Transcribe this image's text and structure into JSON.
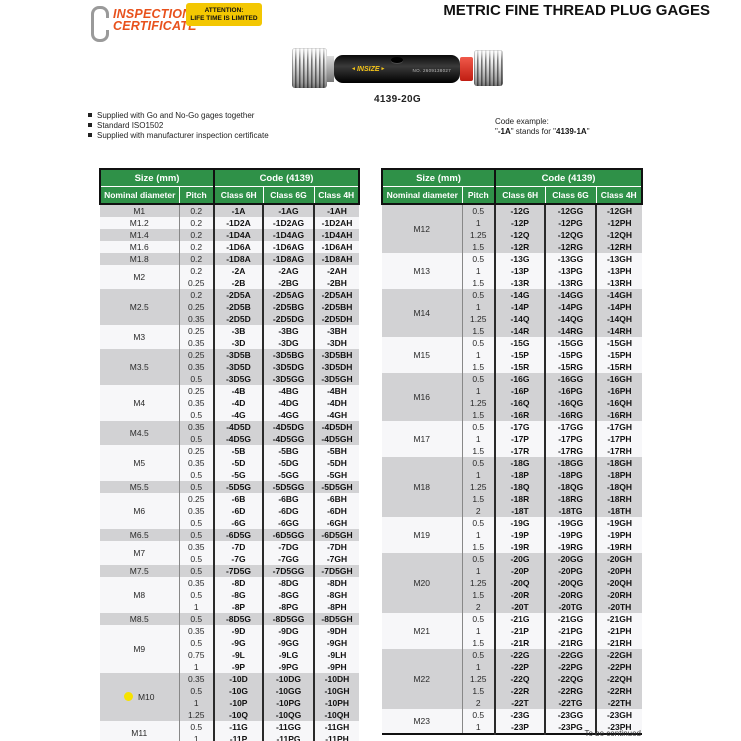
{
  "header": {
    "logo_line1": "INSPECTION",
    "logo_line2": "CERTIFICATE",
    "attention_line1": "ATTENTION:",
    "attention_line2": "LIFE TIME IS LIMITED",
    "title": "METRIC FINE THREAD PLUG GAGES"
  },
  "product": {
    "brand": "INSIZE",
    "serial": "NO. 2609138027",
    "model": "4139-20G"
  },
  "features": [
    "Supplied with Go and No-Go gages together",
    "Standard ISO1502",
    "Supplied with manufacturer inspection certificate"
  ],
  "code_example": {
    "label": "Code example:",
    "q1": "\"",
    "code": "-1A",
    "mid": "\" stands for \"",
    "full": "4139-1A",
    "q2": "\""
  },
  "colors": {
    "header_green": "#2f9148",
    "stripe_gray": "#d2d2d4",
    "stripe_white": "#f7f7f9",
    "accent_orange": "#e8511c",
    "attention_yellow": "#f3c702",
    "dot_yellow": "#f6e200",
    "nogo_red": "#c01d12"
  },
  "tables": [
    {
      "header": {
        "size_group": "Size (mm)",
        "code_group": "Code (4139)",
        "columns": [
          "Nominal diameter",
          "Pitch",
          "Class 6H",
          "Class 6G",
          "Class 4H"
        ]
      },
      "groups": [
        {
          "diameter": "M1",
          "rows": [
            [
              "0.2",
              "-1A",
              "-1AG",
              "-1AH"
            ]
          ]
        },
        {
          "diameter": "M1.2",
          "rows": [
            [
              "0.2",
              "-1D2A",
              "-1D2AG",
              "-1D2AH"
            ]
          ]
        },
        {
          "diameter": "M1.4",
          "rows": [
            [
              "0.2",
              "-1D4A",
              "-1D4AG",
              "-1D4AH"
            ]
          ]
        },
        {
          "diameter": "M1.6",
          "rows": [
            [
              "0.2",
              "-1D6A",
              "-1D6AG",
              "-1D6AH"
            ]
          ]
        },
        {
          "diameter": "M1.8",
          "rows": [
            [
              "0.2",
              "-1D8A",
              "-1D8AG",
              "-1D8AH"
            ]
          ]
        },
        {
          "diameter": "M2",
          "rows": [
            [
              "0.2",
              "-2A",
              "-2AG",
              "-2AH"
            ],
            [
              "0.25",
              "-2B",
              "-2BG",
              "-2BH"
            ]
          ]
        },
        {
          "diameter": "M2.5",
          "rows": [
            [
              "0.2",
              "-2D5A",
              "-2D5AG",
              "-2D5AH"
            ],
            [
              "0.25",
              "-2D5B",
              "-2D5BG",
              "-2D5BH"
            ],
            [
              "0.35",
              "-2D5D",
              "-2D5DG",
              "-2D5DH"
            ]
          ]
        },
        {
          "diameter": "M3",
          "rows": [
            [
              "0.25",
              "-3B",
              "-3BG",
              "-3BH"
            ],
            [
              "0.35",
              "-3D",
              "-3DG",
              "-3DH"
            ]
          ]
        },
        {
          "diameter": "M3.5",
          "rows": [
            [
              "0.25",
              "-3D5B",
              "-3D5BG",
              "-3D5BH"
            ],
            [
              "0.35",
              "-3D5D",
              "-3D5DG",
              "-3D5DH"
            ],
            [
              "0.5",
              "-3D5G",
              "-3D5GG",
              "-3D5GH"
            ]
          ]
        },
        {
          "diameter": "M4",
          "rows": [
            [
              "0.25",
              "-4B",
              "-4BG",
              "-4BH"
            ],
            [
              "0.35",
              "-4D",
              "-4DG",
              "-4DH"
            ],
            [
              "0.5",
              "-4G",
              "-4GG",
              "-4GH"
            ]
          ]
        },
        {
          "diameter": "M4.5",
          "rows": [
            [
              "0.35",
              "-4D5D",
              "-4D5DG",
              "-4D5DH"
            ],
            [
              "0.5",
              "-4D5G",
              "-4D5GG",
              "-4D5GH"
            ]
          ]
        },
        {
          "diameter": "M5",
          "rows": [
            [
              "0.25",
              "-5B",
              "-5BG",
              "-5BH"
            ],
            [
              "0.35",
              "-5D",
              "-5DG",
              "-5DH"
            ],
            [
              "0.5",
              "-5G",
              "-5GG",
              "-5GH"
            ]
          ]
        },
        {
          "diameter": "M5.5",
          "rows": [
            [
              "0.5",
              "-5D5G",
              "-5D5GG",
              "-5D5GH"
            ]
          ]
        },
        {
          "diameter": "M6",
          "rows": [
            [
              "0.25",
              "-6B",
              "-6BG",
              "-6BH"
            ],
            [
              "0.35",
              "-6D",
              "-6DG",
              "-6DH"
            ],
            [
              "0.5",
              "-6G",
              "-6GG",
              "-6GH"
            ]
          ]
        },
        {
          "diameter": "M6.5",
          "rows": [
            [
              "0.5",
              "-6D5G",
              "-6D5GG",
              "-6D5GH"
            ]
          ]
        },
        {
          "diameter": "M7",
          "rows": [
            [
              "0.35",
              "-7D",
              "-7DG",
              "-7DH"
            ],
            [
              "0.5",
              "-7G",
              "-7GG",
              "-7GH"
            ]
          ]
        },
        {
          "diameter": "M7.5",
          "rows": [
            [
              "0.5",
              "-7D5G",
              "-7D5GG",
              "-7D5GH"
            ]
          ]
        },
        {
          "diameter": "M8",
          "rows": [
            [
              "0.35",
              "-8D",
              "-8DG",
              "-8DH"
            ],
            [
              "0.5",
              "-8G",
              "-8GG",
              "-8GH"
            ],
            [
              "1",
              "-8P",
              "-8PG",
              "-8PH"
            ]
          ]
        },
        {
          "diameter": "M8.5",
          "rows": [
            [
              "0.5",
              "-8D5G",
              "-8D5GG",
              "-8D5GH"
            ]
          ]
        },
        {
          "diameter": "M9",
          "rows": [
            [
              "0.35",
              "-9D",
              "-9DG",
              "-9DH"
            ],
            [
              "0.5",
              "-9G",
              "-9GG",
              "-9GH"
            ],
            [
              "0.75",
              "-9L",
              "-9LG",
              "-9LH"
            ],
            [
              "1",
              "-9P",
              "-9PG",
              "-9PH"
            ]
          ]
        },
        {
          "diameter": "M10",
          "marked": true,
          "rows": [
            [
              "0.35",
              "-10D",
              "-10DG",
              "-10DH"
            ],
            [
              "0.5",
              "-10G",
              "-10GG",
              "-10GH"
            ],
            [
              "1",
              "-10P",
              "-10PG",
              "-10PH"
            ],
            [
              "1.25",
              "-10Q",
              "-10QG",
              "-10QH"
            ]
          ]
        },
        {
          "diameter": "M11",
          "rows": [
            [
              "0.5",
              "-11G",
              "-11GG",
              "-11GH"
            ],
            [
              "1",
              "-11P",
              "-11PG",
              "-11PH"
            ]
          ]
        }
      ]
    },
    {
      "header": {
        "size_group": "Size (mm)",
        "code_group": "Code (4139)",
        "columns": [
          "Nominal diameter",
          "Pitch",
          "Class 6H",
          "Class 6G",
          "Class 4H"
        ]
      },
      "footer": "To be continued",
      "groups": [
        {
          "diameter": "M12",
          "rows": [
            [
              "0.5",
              "-12G",
              "-12GG",
              "-12GH"
            ],
            [
              "1",
              "-12P",
              "-12PG",
              "-12PH"
            ],
            [
              "1.25",
              "-12Q",
              "-12QG",
              "-12QH"
            ],
            [
              "1.5",
              "-12R",
              "-12RG",
              "-12RH"
            ]
          ]
        },
        {
          "diameter": "M13",
          "rows": [
            [
              "0.5",
              "-13G",
              "-13GG",
              "-13GH"
            ],
            [
              "1",
              "-13P",
              "-13PG",
              "-13PH"
            ],
            [
              "1.5",
              "-13R",
              "-13RG",
              "-13RH"
            ]
          ]
        },
        {
          "diameter": "M14",
          "rows": [
            [
              "0.5",
              "-14G",
              "-14GG",
              "-14GH"
            ],
            [
              "1",
              "-14P",
              "-14PG",
              "-14PH"
            ],
            [
              "1.25",
              "-14Q",
              "-14QG",
              "-14QH"
            ],
            [
              "1.5",
              "-14R",
              "-14RG",
              "-14RH"
            ]
          ]
        },
        {
          "diameter": "M15",
          "rows": [
            [
              "0.5",
              "-15G",
              "-15GG",
              "-15GH"
            ],
            [
              "1",
              "-15P",
              "-15PG",
              "-15PH"
            ],
            [
              "1.5",
              "-15R",
              "-15RG",
              "-15RH"
            ]
          ]
        },
        {
          "diameter": "M16",
          "rows": [
            [
              "0.5",
              "-16G",
              "-16GG",
              "-16GH"
            ],
            [
              "1",
              "-16P",
              "-16PG",
              "-16PH"
            ],
            [
              "1.25",
              "-16Q",
              "-16QG",
              "-16QH"
            ],
            [
              "1.5",
              "-16R",
              "-16RG",
              "-16RH"
            ]
          ]
        },
        {
          "diameter": "M17",
          "rows": [
            [
              "0.5",
              "-17G",
              "-17GG",
              "-17GH"
            ],
            [
              "1",
              "-17P",
              "-17PG",
              "-17PH"
            ],
            [
              "1.5",
              "-17R",
              "-17RG",
              "-17RH"
            ]
          ]
        },
        {
          "diameter": "M18",
          "rows": [
            [
              "0.5",
              "-18G",
              "-18GG",
              "-18GH"
            ],
            [
              "1",
              "-18P",
              "-18PG",
              "-18PH"
            ],
            [
              "1.25",
              "-18Q",
              "-18QG",
              "-18QH"
            ],
            [
              "1.5",
              "-18R",
              "-18RG",
              "-18RH"
            ],
            [
              "2",
              "-18T",
              "-18TG",
              "-18TH"
            ]
          ]
        },
        {
          "diameter": "M19",
          "rows": [
            [
              "0.5",
              "-19G",
              "-19GG",
              "-19GH"
            ],
            [
              "1",
              "-19P",
              "-19PG",
              "-19PH"
            ],
            [
              "1.5",
              "-19R",
              "-19RG",
              "-19RH"
            ]
          ]
        },
        {
          "diameter": "M20",
          "rows": [
            [
              "0.5",
              "-20G",
              "-20GG",
              "-20GH"
            ],
            [
              "1",
              "-20P",
              "-20PG",
              "-20PH"
            ],
            [
              "1.25",
              "-20Q",
              "-20QG",
              "-20QH"
            ],
            [
              "1.5",
              "-20R",
              "-20RG",
              "-20RH"
            ],
            [
              "2",
              "-20T",
              "-20TG",
              "-20TH"
            ]
          ]
        },
        {
          "diameter": "M21",
          "rows": [
            [
              "0.5",
              "-21G",
              "-21GG",
              "-21GH"
            ],
            [
              "1",
              "-21P",
              "-21PG",
              "-21PH"
            ],
            [
              "1.5",
              "-21R",
              "-21RG",
              "-21RH"
            ]
          ]
        },
        {
          "diameter": "M22",
          "rows": [
            [
              "0.5",
              "-22G",
              "-22GG",
              "-22GH"
            ],
            [
              "1",
              "-22P",
              "-22PG",
              "-22PH"
            ],
            [
              "1.25",
              "-22Q",
              "-22QG",
              "-22QH"
            ],
            [
              "1.5",
              "-22R",
              "-22RG",
              "-22RH"
            ],
            [
              "2",
              "-22T",
              "-22TG",
              "-22TH"
            ]
          ]
        },
        {
          "diameter": "M23",
          "rows": [
            [
              "0.5",
              "-23G",
              "-23GG",
              "-23GH"
            ],
            [
              "1",
              "-23P",
              "-23PG",
              "-23PH"
            ]
          ]
        }
      ]
    }
  ]
}
